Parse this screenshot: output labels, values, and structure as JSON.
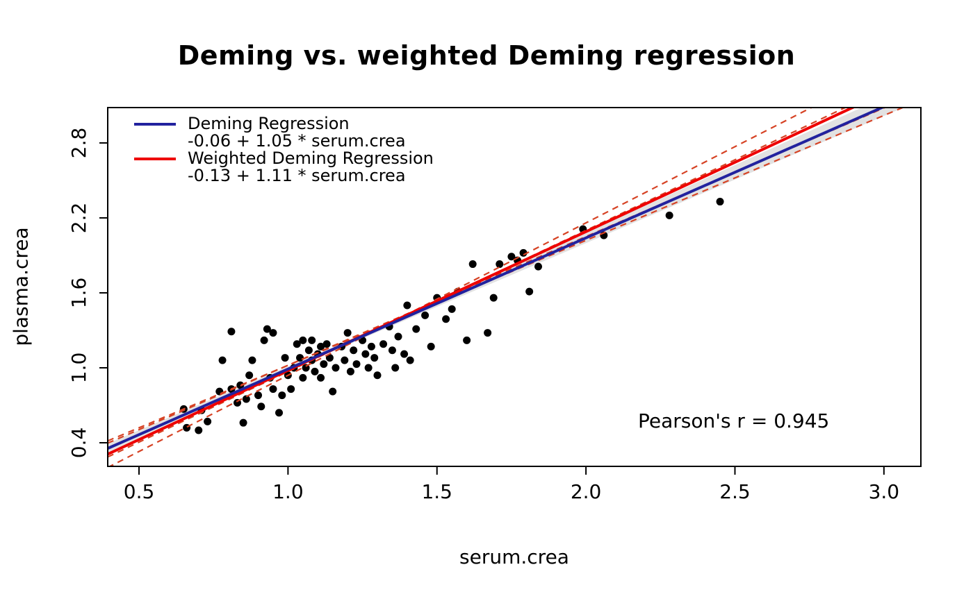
{
  "title": "Deming vs. weighted Deming regression",
  "annotation": "Pearson's r = 0.945",
  "axes": {
    "xlabel": "serum.crea",
    "ylabel": "plasma.crea",
    "xlim": [
      0.395,
      3.124
    ],
    "ylim": [
      0.211,
      3.083
    ],
    "xticks": [
      {
        "value": 0.5,
        "label": "0.5"
      },
      {
        "value": 1.0,
        "label": "1.0"
      },
      {
        "value": 1.5,
        "label": "1.5"
      },
      {
        "value": 2.0,
        "label": "2.0"
      },
      {
        "value": 2.5,
        "label": "2.5"
      },
      {
        "value": 3.0,
        "label": "3.0"
      }
    ],
    "yticks": [
      {
        "value": 0.4,
        "label": "0.4"
      },
      {
        "value": 1.0,
        "label": "1.0"
      },
      {
        "value": 1.6,
        "label": "1.6"
      },
      {
        "value": 2.2,
        "label": "2.2"
      },
      {
        "value": 2.8,
        "label": "2.8"
      }
    ]
  },
  "legend": {
    "entries": [
      {
        "label": "Deming Regression",
        "equation": "-0.06 + 1.05 * serum.crea",
        "color": "#22229e"
      },
      {
        "label": "Weighted Deming Regression",
        "equation": "-0.13 + 1.11 * serum.crea",
        "color": "#ee0000"
      }
    ]
  },
  "chart_data": {
    "type": "scatter",
    "title": "Deming vs. weighted Deming regression",
    "xlabel": "serum.crea",
    "ylabel": "plasma.crea",
    "xlim": [
      0.395,
      3.124
    ],
    "ylim": [
      0.211,
      3.083
    ],
    "grid": false,
    "legend_position": "top-left",
    "pearson_r": 0.945,
    "point_color": "#000000",
    "lines": [
      {
        "id": "deming-line",
        "name": "Deming Regression",
        "intercept": -0.06,
        "slope": 1.05,
        "color": "#22229e",
        "style": "solid"
      },
      {
        "id": "weighted-deming-line",
        "name": "Weighted Deming Regression",
        "intercept": -0.13,
        "slope": 1.11,
        "color": "#ee0000",
        "style": "solid"
      }
    ],
    "ci_lines": [
      {
        "intercept": -0.28,
        "slope": 1.22,
        "color": "#d64224",
        "style": "dashed"
      },
      {
        "intercept": 0.02,
        "slope": 1.0,
        "color": "#d64224",
        "style": "dashed"
      },
      {
        "intercept": -0.16,
        "slope": 1.13,
        "color": "#d64224",
        "style": "dashed"
      },
      {
        "intercept": -0.01,
        "slope": 1.03,
        "color": "#d64224",
        "style": "dashed"
      }
    ],
    "confidence_band": {
      "center_intercept": -0.06,
      "center_slope": 1.05,
      "half_width_at_pivot": 0.015,
      "half_width_growth": 0.032,
      "pivot_x": 1.15,
      "color": "#e2e2e2"
    },
    "points": [
      [
        0.65,
        0.67
      ],
      [
        0.66,
        0.52
      ],
      [
        0.7,
        0.5
      ],
      [
        0.71,
        0.66
      ],
      [
        0.73,
        0.57
      ],
      [
        0.77,
        0.81
      ],
      [
        0.78,
        1.06
      ],
      [
        0.81,
        1.29
      ],
      [
        0.81,
        0.83
      ],
      [
        0.83,
        0.72
      ],
      [
        0.84,
        0.86
      ],
      [
        0.85,
        0.56
      ],
      [
        0.86,
        0.75
      ],
      [
        0.87,
        0.94
      ],
      [
        0.88,
        1.06
      ],
      [
        0.9,
        0.78
      ],
      [
        0.91,
        0.69
      ],
      [
        0.92,
        1.22
      ],
      [
        0.93,
        1.31
      ],
      [
        0.94,
        0.92
      ],
      [
        0.95,
        0.83
      ],
      [
        0.95,
        1.28
      ],
      [
        0.97,
        0.64
      ],
      [
        0.98,
        0.78
      ],
      [
        0.99,
        1.08
      ],
      [
        1.0,
        0.94
      ],
      [
        1.01,
        0.83
      ],
      [
        1.02,
        1.0
      ],
      [
        1.03,
        1.19
      ],
      [
        1.04,
        1.08
      ],
      [
        1.05,
        0.92
      ],
      [
        1.05,
        1.22
      ],
      [
        1.06,
        1.0
      ],
      [
        1.07,
        1.14
      ],
      [
        1.08,
        1.06
      ],
      [
        1.08,
        1.22
      ],
      [
        1.09,
        0.97
      ],
      [
        1.1,
        1.11
      ],
      [
        1.11,
        0.92
      ],
      [
        1.11,
        1.17
      ],
      [
        1.12,
        1.03
      ],
      [
        1.13,
        1.19
      ],
      [
        1.14,
        1.08
      ],
      [
        1.15,
        0.81
      ],
      [
        1.16,
        1.0
      ],
      [
        1.18,
        1.17
      ],
      [
        1.19,
        1.06
      ],
      [
        1.2,
        1.28
      ],
      [
        1.21,
        0.97
      ],
      [
        1.22,
        1.14
      ],
      [
        1.23,
        1.03
      ],
      [
        1.25,
        1.22
      ],
      [
        1.26,
        1.11
      ],
      [
        1.27,
        1.0
      ],
      [
        1.28,
        1.17
      ],
      [
        1.29,
        1.08
      ],
      [
        1.3,
        0.94
      ],
      [
        1.32,
        1.19
      ],
      [
        1.34,
        1.33
      ],
      [
        1.35,
        1.14
      ],
      [
        1.36,
        1.0
      ],
      [
        1.37,
        1.25
      ],
      [
        1.39,
        1.11
      ],
      [
        1.4,
        1.5
      ],
      [
        1.41,
        1.06
      ],
      [
        1.43,
        1.31
      ],
      [
        1.46,
        1.42
      ],
      [
        1.48,
        1.17
      ],
      [
        1.5,
        1.56
      ],
      [
        1.53,
        1.39
      ],
      [
        1.55,
        1.47
      ],
      [
        1.57,
        1.61
      ],
      [
        1.6,
        1.22
      ],
      [
        1.62,
        1.83
      ],
      [
        1.67,
        1.28
      ],
      [
        1.69,
        1.56
      ],
      [
        1.71,
        1.83
      ],
      [
        1.75,
        1.89
      ],
      [
        1.77,
        1.86
      ],
      [
        1.79,
        1.92
      ],
      [
        1.81,
        1.61
      ],
      [
        1.84,
        1.81
      ],
      [
        1.99,
        2.11
      ],
      [
        2.06,
        2.06
      ],
      [
        2.28,
        2.22
      ],
      [
        2.45,
        2.33
      ]
    ]
  }
}
